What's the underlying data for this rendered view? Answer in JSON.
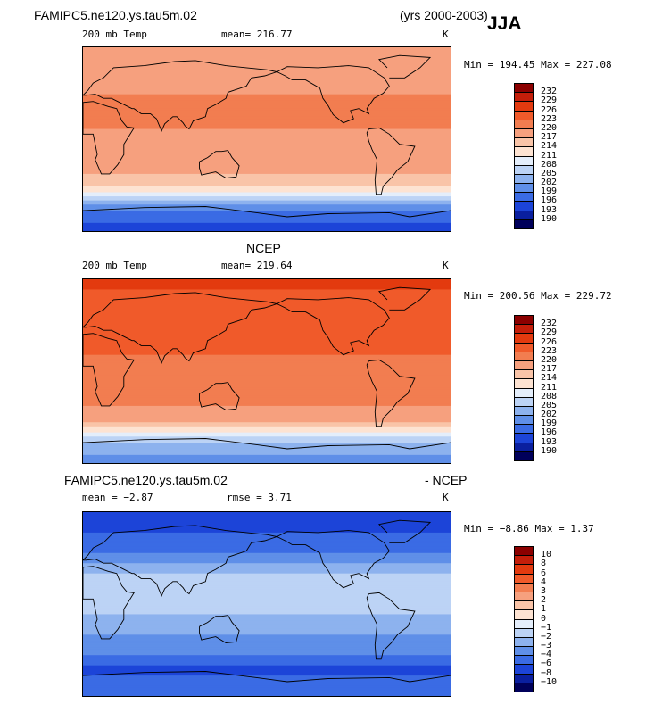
{
  "header": {
    "model_name": "FAMIPC5.ne120.ys.tau5m.02",
    "years": "(yrs 2000-2003)",
    "season": "JJA"
  },
  "panels": [
    {
      "id": "model",
      "title": "",
      "left_label": "200 mb Temp",
      "center_label": "mean= 216.77",
      "units": "K",
      "minmax": "Min = 194.45 Max = 227.08",
      "colorbar_levels": [
        "232",
        "229",
        "226",
        "223",
        "220",
        "217",
        "214",
        "211",
        "208",
        "205",
        "202",
        "199",
        "196",
        "193",
        "190"
      ]
    },
    {
      "id": "ncep",
      "title": "NCEP",
      "left_label": "200 mb Temp",
      "center_label": "mean= 219.64",
      "units": "K",
      "minmax": "Min = 200.56 Max = 229.72",
      "colorbar_levels": [
        "232",
        "229",
        "226",
        "223",
        "220",
        "217",
        "214",
        "211",
        "208",
        "205",
        "202",
        "199",
        "196",
        "193",
        "190"
      ]
    },
    {
      "id": "diff",
      "title_left": "FAMIPC5.ne120.ys.tau5m.02",
      "title_right": "- NCEP",
      "left_label": "mean =  −2.87",
      "center_label": "rmse =   3.71",
      "units": "K",
      "minmax": "Min =  −8.86 Max =   1.37",
      "colorbar_levels": [
        "10",
        "8",
        "6",
        "4",
        "3",
        "2",
        "1",
        "0",
        "−1",
        "−2",
        "−3",
        "−4",
        "−6",
        "−8",
        "−10"
      ]
    }
  ],
  "colors": {
    "scale": [
      "#8b0000",
      "#c41e0a",
      "#e33a0f",
      "#f05a2a",
      "#f27d50",
      "#f6a07e",
      "#f9c4a8",
      "#fde3d2",
      "#e4eefb",
      "#bcd3f5",
      "#8db2ee",
      "#5f8fe8",
      "#3a6be4",
      "#1c44d8",
      "#0a1f9f",
      "#00005a"
    ]
  },
  "chart_data": [
    {
      "type": "heatmap",
      "title": "",
      "variable": "200 mb Temp",
      "units": "K",
      "mean": 216.77,
      "min": 194.45,
      "max": 227.08,
      "levels": [
        190,
        193,
        196,
        199,
        202,
        205,
        208,
        211,
        214,
        217,
        220,
        223,
        226,
        229,
        232
      ],
      "zonal_profile_lat": [
        90,
        70,
        50,
        30,
        10,
        -10,
        -30,
        -50,
        -60,
        -70,
        -90
      ],
      "zonal_profile_value": [
        218,
        218,
        219,
        223,
        220,
        219,
        218,
        213,
        205,
        199,
        194
      ]
    },
    {
      "type": "heatmap",
      "title": "NCEP",
      "variable": "200 mb Temp",
      "units": "K",
      "mean": 219.64,
      "min": 200.56,
      "max": 229.72,
      "levels": [
        190,
        193,
        196,
        199,
        202,
        205,
        208,
        211,
        214,
        217,
        220,
        223,
        226,
        229,
        232
      ],
      "zonal_profile_lat": [
        90,
        70,
        50,
        30,
        10,
        -10,
        -30,
        -50,
        -60,
        -70,
        -90
      ],
      "zonal_profile_value": [
        227,
        225,
        224,
        226,
        222,
        222,
        221,
        217,
        211,
        205,
        200
      ]
    },
    {
      "type": "heatmap",
      "title": "FAMIPC5.ne120.ys.tau5m.02 - NCEP",
      "variable": "difference",
      "units": "K",
      "mean": -2.87,
      "rmse": 3.71,
      "min": -8.86,
      "max": 1.37,
      "levels": [
        -10,
        -8,
        -6,
        -4,
        -3,
        -2,
        -1,
        0,
        1,
        2,
        3,
        4,
        6,
        8,
        10
      ],
      "zonal_profile_lat": [
        90,
        70,
        50,
        30,
        10,
        -10,
        -30,
        -50,
        -60,
        -70,
        -90
      ],
      "zonal_profile_value": [
        -8,
        -6,
        -4,
        -2,
        -1.5,
        -2,
        -3,
        -4,
        -6,
        -6,
        -5
      ]
    }
  ]
}
